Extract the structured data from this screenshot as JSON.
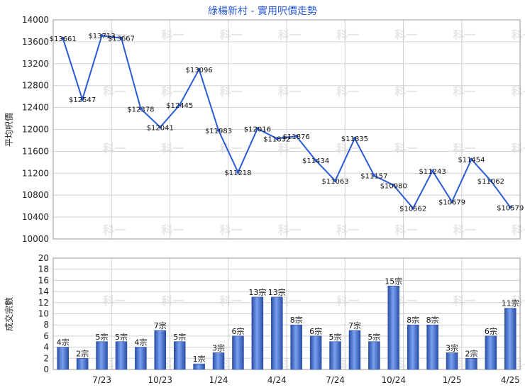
{
  "chart_data": [
    {
      "type": "line",
      "title": "綠楊新村 - 實用呎價走勢",
      "ylabel": "平均呎價",
      "ylim": [
        10000,
        14000
      ],
      "yticks": [
        10000,
        10400,
        10800,
        11200,
        11600,
        12000,
        12400,
        12800,
        13200,
        13600,
        14000
      ],
      "x_tick_labels": [
        "7/23",
        "10/23",
        "1/24",
        "4/24",
        "7/24",
        "10/24",
        "1/25",
        "4/25"
      ],
      "grid": true,
      "series": [
        {
          "values": [
            13661,
            12547,
            13713,
            13667,
            12378,
            12041,
            12445,
            13096,
            11983,
            11218,
            12016,
            11832,
            11876,
            11434,
            11063,
            11835,
            11157,
            10980,
            10562,
            11243,
            10679,
            11454,
            11062,
            10579
          ],
          "labels": [
            "$13661",
            "$12547",
            "$13713",
            "$13667",
            "$12378",
            "$12041",
            "$12445",
            "$13096",
            "$11983",
            "$11218",
            "$12016",
            "$11832",
            "$11876",
            "$11434",
            "$11063",
            "$11835",
            "$11157",
            "$10980",
            "$10562",
            "$11243",
            "$10679",
            "$11454",
            "$11062",
            "$10579"
          ]
        }
      ],
      "color": "#2a5bd7"
    },
    {
      "type": "bar",
      "ylabel": "成交宗數",
      "ylim": [
        0,
        20
      ],
      "yticks": [
        0,
        2,
        4,
        6,
        8,
        10,
        12,
        14,
        16,
        18,
        20
      ],
      "x_tick_labels": [
        "7/23",
        "10/23",
        "1/24",
        "4/24",
        "7/24",
        "10/24",
        "1/25",
        "4/25"
      ],
      "grid": true,
      "series": [
        {
          "values": [
            4,
            2,
            5,
            5,
            4,
            7,
            5,
            1,
            3,
            6,
            13,
            13,
            8,
            6,
            5,
            7,
            5,
            15,
            8,
            8,
            3,
            2,
            6,
            11
          ],
          "labels": [
            "4宗",
            "2宗",
            "5宗",
            "5宗",
            "4宗",
            "7宗",
            "5宗",
            "1宗",
            "3宗",
            "6宗",
            "13宗",
            "13宗",
            "8宗",
            "6宗",
            "5宗",
            "7宗",
            "5宗",
            "15宗",
            "8宗",
            "8宗",
            "3宗",
            "2宗",
            "6宗",
            "11宗"
          ]
        }
      ],
      "color": "#3a66c8"
    }
  ],
  "watermark": "科一"
}
